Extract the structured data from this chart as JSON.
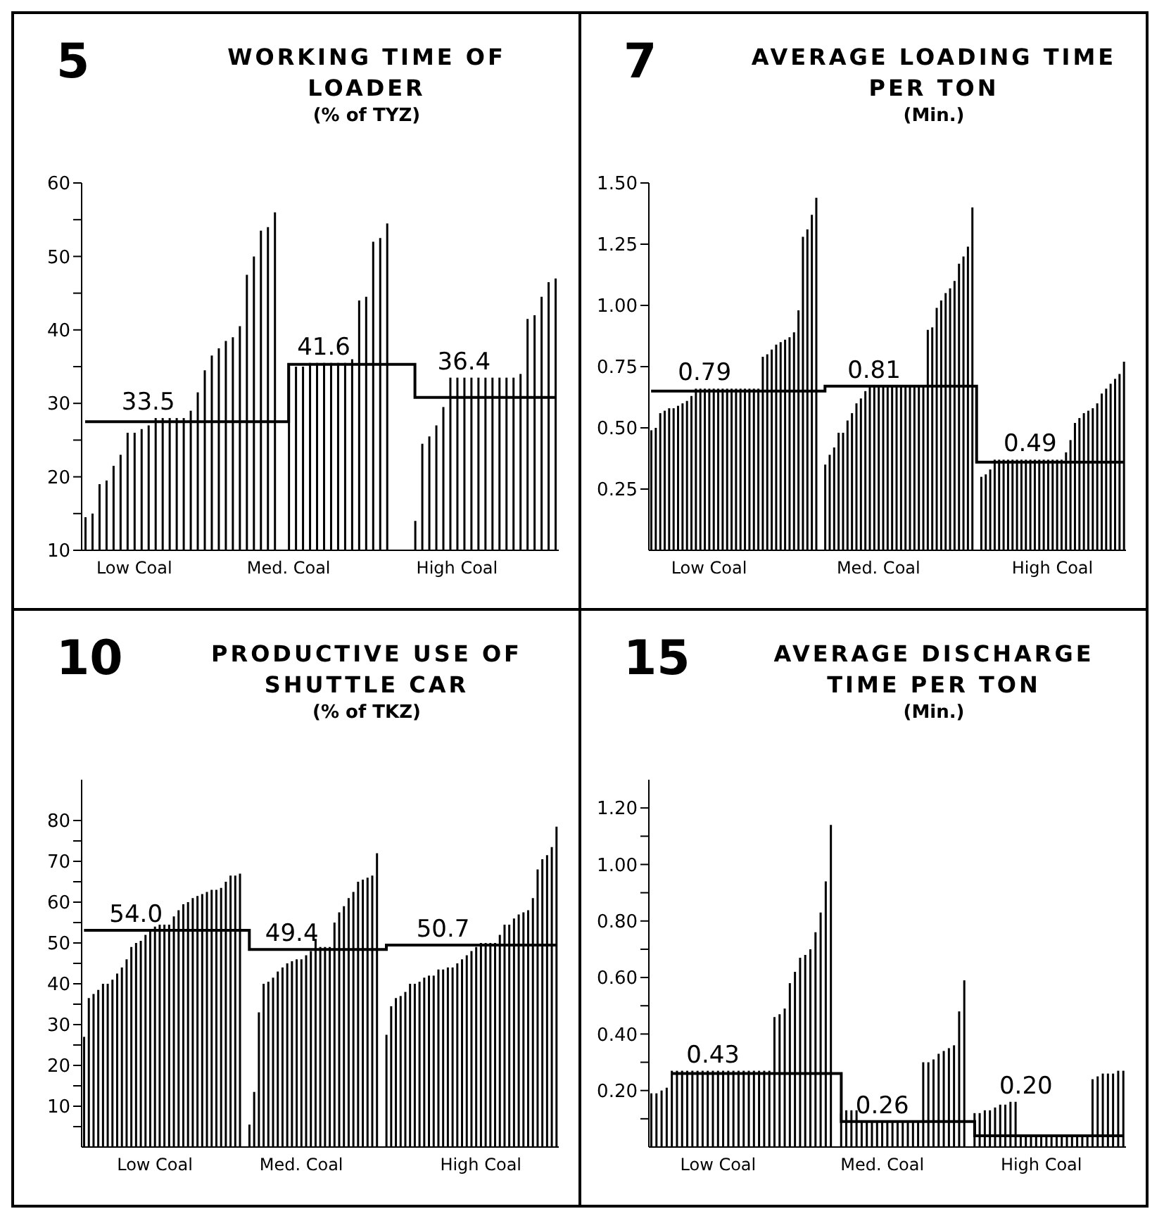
{
  "chart_data": [
    {
      "type": "bar",
      "title": "WORKING TIME OF LOADER",
      "subtitle": "(% of TYZ)",
      "annotations": [
        "5",
        "33.5",
        "41.6",
        "36.4"
      ],
      "ylim": [
        10,
        60
      ],
      "yticks": [
        10,
        {
          "value": 15,
          "label": null
        },
        20,
        {
          "value": 25,
          "label": null
        },
        30,
        {
          "value": 35,
          "label": null
        },
        40,
        {
          "value": 45,
          "label": null
        },
        50,
        {
          "value": 55,
          "label": null
        },
        60
      ],
      "categories": [
        null,
        null,
        null,
        null,
        null,
        null,
        null,
        "Low Coal",
        null,
        null,
        null,
        null,
        null,
        null,
        null,
        null,
        null,
        null,
        null,
        null,
        null,
        null,
        null,
        null,
        null,
        null,
        null,
        null,
        null,
        "Med. Coal",
        null,
        null,
        null,
        null,
        null,
        null,
        null,
        null,
        null,
        null,
        null,
        null,
        null,
        null,
        null,
        null,
        null,
        null,
        null,
        null,
        null,
        null,
        null,
        "High Coal",
        null,
        null,
        null,
        null,
        null,
        null,
        null,
        null,
        null,
        null,
        null,
        null,
        null,
        null
      ],
      "series": [
        {
          "type": "bar",
          "color": "#000000",
          "values": [
            14.5,
            15,
            19,
            19.5,
            21.5,
            23,
            26,
            26,
            26.5,
            27,
            28,
            28,
            28,
            28,
            28,
            29,
            31.5,
            34.5,
            36.5,
            37.5,
            38.5,
            39,
            40.5,
            47.5,
            50,
            53.5,
            54,
            56,
            null,
            35,
            35,
            35,
            35.5,
            35.5,
            35.5,
            35.5,
            35.5,
            35.5,
            36,
            44,
            44.5,
            52,
            52.5,
            54.5,
            null,
            null,
            null,
            14,
            24.5,
            25.5,
            27,
            29.5,
            33.5,
            33.5,
            33.5,
            33.5,
            33.5,
            33.5,
            33.5,
            33.5,
            33.5,
            33.5,
            34,
            41.5,
            42,
            44.5,
            46.5,
            47
          ]
        },
        {
          "type": "step",
          "color": "#000000",
          "values": [
            27.5,
            27.5,
            27.5,
            27.5,
            27.5,
            27.5,
            27.5,
            27.5,
            27.5,
            27.5,
            27.5,
            27.5,
            27.5,
            27.5,
            27.5,
            27.5,
            27.5,
            27.5,
            27.5,
            27.5,
            27.5,
            27.5,
            27.5,
            27.5,
            27.5,
            27.5,
            27.5,
            27.5,
            27.5,
            35.3,
            35.3,
            35.3,
            35.3,
            35.3,
            35.3,
            35.3,
            35.3,
            35.3,
            35.3,
            35.3,
            35.3,
            35.3,
            35.3,
            35.3,
            35.3,
            35.3,
            35.3,
            30.8,
            30.8,
            30.8,
            30.8,
            30.8,
            30.8,
            30.8,
            30.8,
            30.8,
            30.8,
            30.8,
            30.8,
            30.8,
            30.8,
            30.8,
            30.8,
            30.8,
            30.8,
            30.8,
            30.8,
            30.8
          ]
        }
      ]
    },
    {
      "type": "bar",
      "title": "AVERAGE LOADING TIME PER TON",
      "subtitle": "(Min.)",
      "annotations": [
        "7",
        "0.79",
        "0.81",
        "0.49"
      ],
      "ylim": [
        0,
        1.5
      ],
      "yticks": [
        0.25,
        {
          "value": 0.5,
          "label": "0.50"
        },
        0.75,
        {
          "value": 1,
          "label": "1.00"
        },
        1.25,
        {
          "value": 1.5,
          "label": "1.50"
        }
      ],
      "categories": [
        null,
        null,
        null,
        null,
        null,
        null,
        null,
        null,
        null,
        null,
        null,
        null,
        null,
        "Low Coal",
        null,
        null,
        null,
        null,
        null,
        null,
        null,
        null,
        null,
        null,
        null,
        null,
        null,
        null,
        null,
        null,
        null,
        null,
        null,
        null,
        null,
        null,
        null,
        null,
        null,
        null,
        null,
        null,
        null,
        null,
        null,
        null,
        null,
        null,
        null,
        null,
        null,
        "Med. Coal",
        null,
        null,
        null,
        null,
        null,
        null,
        null,
        null,
        null,
        null,
        null,
        null,
        null,
        null,
        null,
        null,
        null,
        null,
        null,
        null,
        null,
        null,
        null,
        null,
        null,
        null,
        null,
        null,
        null,
        null,
        null,
        null,
        null,
        null,
        null,
        null,
        null,
        null,
        "High Coal",
        null,
        null,
        null,
        null,
        null,
        null,
        null,
        null,
        null,
        null,
        null,
        null,
        null,
        null,
        null,
        null
      ],
      "series": [
        {
          "type": "bar",
          "color": "#000000",
          "values": [
            0.49,
            0.5,
            0.56,
            0.57,
            0.58,
            0.58,
            0.59,
            0.6,
            0.61,
            0.63,
            0.66,
            0.66,
            0.66,
            0.66,
            0.66,
            0.66,
            0.66,
            0.66,
            0.66,
            0.66,
            0.66,
            0.66,
            0.66,
            0.66,
            0.66,
            0.79,
            0.8,
            0.82,
            0.84,
            0.85,
            0.86,
            0.87,
            0.89,
            0.98,
            1.28,
            1.31,
            1.37,
            1.44,
            null,
            0.35,
            0.39,
            0.42,
            0.48,
            0.48,
            0.53,
            0.56,
            0.6,
            0.62,
            0.65,
            0.67,
            0.67,
            0.67,
            0.67,
            0.67,
            0.67,
            0.67,
            0.67,
            0.67,
            0.67,
            0.67,
            0.67,
            0.67,
            0.9,
            0.91,
            0.99,
            1.02,
            1.05,
            1.07,
            1.1,
            1.17,
            1.2,
            1.24,
            1.4,
            null,
            0.3,
            0.31,
            0.33,
            0.37,
            0.37,
            0.37,
            0.37,
            0.37,
            0.37,
            0.37,
            0.37,
            0.37,
            0.37,
            0.37,
            0.37,
            0.37,
            0.37,
            0.37,
            0.37,
            0.4,
            0.45,
            0.52,
            0.54,
            0.56,
            0.57,
            0.58,
            0.6,
            0.64,
            0.66,
            0.68,
            0.7,
            0.72,
            0.77
          ]
        },
        {
          "type": "step",
          "color": "#000000",
          "values": [
            0.65,
            0.65,
            0.65,
            0.65,
            0.65,
            0.65,
            0.65,
            0.65,
            0.65,
            0.65,
            0.65,
            0.65,
            0.65,
            0.65,
            0.65,
            0.65,
            0.65,
            0.65,
            0.65,
            0.65,
            0.65,
            0.65,
            0.65,
            0.65,
            0.65,
            0.65,
            0.65,
            0.65,
            0.65,
            0.65,
            0.65,
            0.65,
            0.65,
            0.65,
            0.65,
            0.65,
            0.65,
            0.65,
            0.65,
            0.67,
            0.67,
            0.67,
            0.67,
            0.67,
            0.67,
            0.67,
            0.67,
            0.67,
            0.67,
            0.67,
            0.67,
            0.67,
            0.67,
            0.67,
            0.67,
            0.67,
            0.67,
            0.67,
            0.67,
            0.67,
            0.67,
            0.67,
            0.67,
            0.67,
            0.67,
            0.67,
            0.67,
            0.67,
            0.67,
            0.67,
            0.67,
            0.67,
            0.67,
            0.36,
            0.36,
            0.36,
            0.36,
            0.36,
            0.36,
            0.36,
            0.36,
            0.36,
            0.36,
            0.36,
            0.36,
            0.36,
            0.36,
            0.36,
            0.36,
            0.36,
            0.36,
            0.36,
            0.36,
            0.36,
            0.36,
            0.36,
            0.36,
            0.36,
            0.36,
            0.36,
            0.36,
            0.36,
            0.36,
            0.36,
            0.36,
            0.36,
            0.36
          ]
        }
      ]
    },
    {
      "type": "bar",
      "title": "PRODUCTIVE USE OF SHUTTLE CAR",
      "subtitle": "(% of TKZ)",
      "annotations": [
        "10",
        "54.0",
        "49.4",
        "50.7"
      ],
      "ylim": [
        0,
        90
      ],
      "yticks": [
        {
          "value": 5,
          "label": null
        },
        10,
        {
          "value": 15,
          "label": null
        },
        20,
        {
          "value": 25,
          "label": null
        },
        30,
        {
          "value": 35,
          "label": null
        },
        40,
        {
          "value": 45,
          "label": null
        },
        50,
        {
          "value": 55,
          "label": null
        },
        60,
        {
          "value": 65,
          "label": null
        },
        70,
        {
          "value": 75,
          "label": null
        },
        80
      ],
      "categories": [
        null,
        null,
        null,
        null,
        null,
        null,
        null,
        null,
        null,
        null,
        null,
        null,
        null,
        null,
        null,
        "Low Coal",
        null,
        null,
        null,
        null,
        null,
        null,
        null,
        null,
        null,
        null,
        null,
        null,
        null,
        null,
        null,
        null,
        null,
        null,
        null,
        null,
        null,
        null,
        null,
        null,
        null,
        null,
        null,
        null,
        null,
        null,
        "Med. Coal",
        null,
        null,
        null,
        null,
        null,
        null,
        null,
        null,
        null,
        null,
        null,
        null,
        null,
        null,
        null,
        null,
        null,
        null,
        null,
        null,
        null,
        null,
        null,
        null,
        null,
        null,
        null,
        null,
        null,
        null,
        null,
        null,
        null,
        null,
        null,
        null,
        null,
        "High Coal",
        null,
        null,
        null,
        null,
        null,
        null,
        null,
        null,
        null,
        null,
        null,
        null,
        null,
        null,
        null,
        null
      ],
      "series": [
        {
          "type": "bar",
          "color": "#000000",
          "values": [
            27,
            36.5,
            37.5,
            38.5,
            40,
            40,
            41,
            42.5,
            44,
            46,
            49,
            50,
            50.5,
            52,
            53,
            54,
            54.5,
            54.5,
            54.5,
            56.5,
            58,
            59.5,
            60,
            61,
            61.5,
            62,
            62.5,
            63,
            63,
            63.5,
            65,
            66.5,
            66.5,
            67,
            null,
            5.5,
            13.5,
            33,
            40,
            40.5,
            41.5,
            43,
            44,
            45,
            45.5,
            46,
            46,
            47,
            48,
            51,
            49,
            49,
            49,
            55,
            57.5,
            59,
            61,
            62.5,
            65,
            65.5,
            66,
            66.5,
            72,
            null,
            27.5,
            34.5,
            36.5,
            37,
            38,
            40,
            40,
            40.5,
            41.5,
            42,
            42,
            43.5,
            43.5,
            44,
            44,
            45,
            46,
            47,
            48,
            49,
            50,
            50,
            50,
            50,
            52,
            54.5,
            54.5,
            56,
            57,
            57.5,
            58,
            61,
            68,
            70.5,
            71.5,
            73.5,
            78.5
          ]
        },
        {
          "type": "step",
          "color": "#000000",
          "values": [
            53.1,
            53.1,
            53.1,
            53.1,
            53.1,
            53.1,
            53.1,
            53.1,
            53.1,
            53.1,
            53.1,
            53.1,
            53.1,
            53.1,
            53.1,
            53.1,
            53.1,
            53.1,
            53.1,
            53.1,
            53.1,
            53.1,
            53.1,
            53.1,
            53.1,
            53.1,
            53.1,
            53.1,
            53.1,
            53.1,
            53.1,
            53.1,
            53.1,
            53.1,
            53.1,
            48.4,
            48.4,
            48.4,
            48.4,
            48.4,
            48.4,
            48.4,
            48.4,
            48.4,
            48.4,
            48.4,
            48.4,
            48.4,
            48.4,
            48.4,
            48.4,
            48.4,
            48.4,
            48.4,
            48.4,
            48.4,
            48.4,
            48.4,
            48.4,
            48.4,
            48.4,
            48.4,
            48.4,
            48.4,
            49.5,
            49.5,
            49.5,
            49.5,
            49.5,
            49.5,
            49.5,
            49.5,
            49.5,
            49.5,
            49.5,
            49.5,
            49.5,
            49.5,
            49.5,
            49.5,
            49.5,
            49.5,
            49.5,
            49.5,
            49.5,
            49.5,
            49.5,
            49.5,
            49.5,
            49.5,
            49.5,
            49.5,
            49.5,
            49.5,
            49.5,
            49.5,
            49.5,
            49.5,
            49.5,
            49.5,
            49.5
          ]
        }
      ]
    },
    {
      "type": "bar",
      "title": "AVERAGE DISCHARGE TIME PER TON",
      "subtitle": "(Min.)",
      "annotations": [
        "15",
        "0.43",
        "0.26",
        "0.20"
      ],
      "ylim": [
        0,
        1.3
      ],
      "yticks": [
        {
          "value": 0.1,
          "label": null
        },
        {
          "value": 0.2,
          "label": "0.20"
        },
        {
          "value": 0.3,
          "label": null
        },
        {
          "value": 0.4,
          "label": "0.40"
        },
        {
          "value": 0.5,
          "label": null
        },
        {
          "value": 0.6,
          "label": "0.60"
        },
        {
          "value": 0.7,
          "label": null
        },
        {
          "value": 0.8,
          "label": "0.80"
        },
        {
          "value": 0.9,
          "label": null
        },
        {
          "value": 1,
          "label": "1.00"
        },
        {
          "value": 1.1,
          "label": null
        },
        {
          "value": 1.2,
          "label": "1.20"
        }
      ],
      "categories": [
        null,
        null,
        null,
        null,
        null,
        null,
        null,
        null,
        null,
        null,
        null,
        null,
        null,
        "Low Coal",
        null,
        null,
        null,
        null,
        null,
        null,
        null,
        null,
        null,
        null,
        null,
        null,
        null,
        null,
        null,
        null,
        null,
        null,
        null,
        null,
        null,
        null,
        null,
        null,
        null,
        null,
        null,
        null,
        null,
        null,
        null,
        "Med. Coal",
        null,
        null,
        null,
        null,
        null,
        null,
        null,
        null,
        null,
        null,
        null,
        null,
        null,
        null,
        null,
        null,
        null,
        null,
        null,
        null,
        null,
        null,
        null,
        null,
        null,
        null,
        null,
        null,
        null,
        null,
        "High Coal",
        null,
        null,
        null,
        null,
        null,
        null,
        null,
        null,
        null,
        null,
        null,
        null,
        null,
        null,
        null,
        null
      ],
      "series": [
        {
          "type": "bar",
          "color": "#000000",
          "values": [
            0.19,
            0.19,
            0.2,
            0.21,
            0.27,
            0.27,
            0.27,
            0.27,
            0.27,
            0.27,
            0.27,
            0.27,
            0.27,
            0.27,
            0.27,
            0.27,
            0.27,
            0.27,
            0.27,
            0.27,
            0.27,
            0.27,
            0.27,
            0.27,
            0.46,
            0.47,
            0.49,
            0.58,
            0.62,
            0.67,
            0.68,
            0.7,
            0.76,
            0.83,
            0.94,
            1.14,
            null,
            0.12,
            0.13,
            0.13,
            0.13,
            0.09,
            0.09,
            0.09,
            0.09,
            0.09,
            0.09,
            0.09,
            0.09,
            0.09,
            0.09,
            0.09,
            0.09,
            0.3,
            0.3,
            0.31,
            0.33,
            0.34,
            0.35,
            0.36,
            0.48,
            0.59,
            null,
            0.12,
            0.12,
            0.13,
            0.13,
            0.14,
            0.15,
            0.15,
            0.16,
            0.16,
            0.04,
            0.04,
            0.04,
            0.04,
            0.04,
            0.04,
            0.04,
            0.04,
            0.04,
            0.04,
            0.04,
            0.04,
            0.04,
            0.04,
            0.24,
            0.25,
            0.26,
            0.26,
            0.26,
            0.27,
            0.27
          ]
        },
        {
          "type": "step",
          "color": "#000000",
          "values": [
            null,
            null,
            null,
            null,
            0.26,
            0.26,
            0.26,
            0.26,
            0.26,
            0.26,
            0.26,
            0.26,
            0.26,
            0.26,
            0.26,
            0.26,
            0.26,
            0.26,
            0.26,
            0.26,
            0.26,
            0.26,
            0.26,
            0.26,
            0.26,
            0.26,
            0.26,
            0.26,
            0.26,
            0.26,
            0.26,
            0.26,
            0.26,
            0.26,
            0.26,
            0.26,
            0.26,
            0.09,
            0.09,
            0.09,
            0.09,
            0.09,
            0.09,
            0.09,
            0.09,
            0.09,
            0.09,
            0.09,
            0.09,
            0.09,
            0.09,
            0.09,
            0.09,
            0.09,
            0.09,
            0.09,
            0.09,
            0.09,
            0.09,
            0.09,
            0.09,
            0.09,
            0.09,
            0.04,
            0.04,
            0.04,
            0.04,
            0.04,
            0.04,
            0.04,
            0.04,
            0.04,
            0.04,
            0.04,
            0.04,
            0.04,
            0.04,
            0.04,
            0.04,
            0.04,
            0.04,
            0.04,
            0.04,
            0.04,
            0.04,
            0.04,
            0.04,
            0.04,
            0.04,
            0.04,
            0.04,
            0.04,
            0.04
          ]
        }
      ]
    }
  ]
}
